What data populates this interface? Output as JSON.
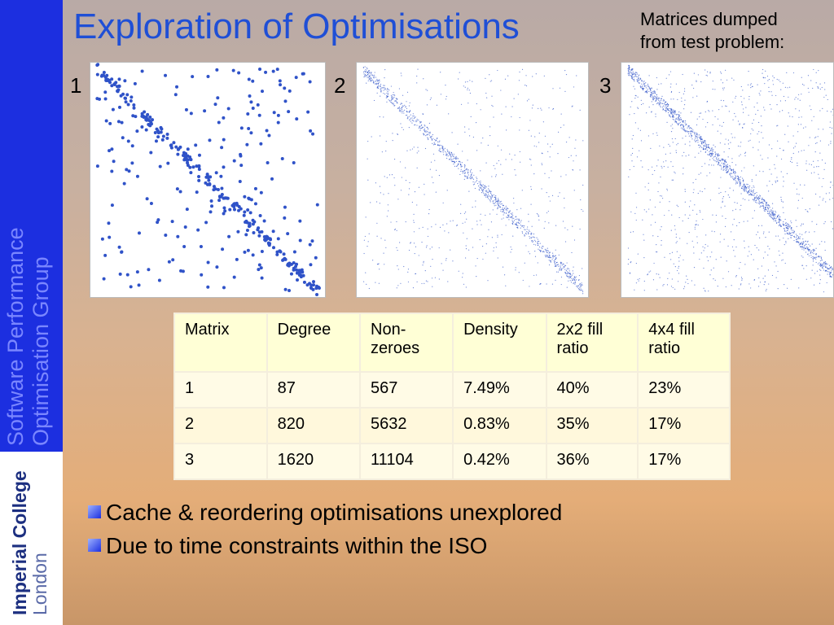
{
  "sidebar": {
    "group": [
      "Software Performance",
      "Optimisation Group"
    ],
    "logo": [
      "Imperial College",
      "London"
    ]
  },
  "title": "Exploration of Optimisations",
  "note": [
    "Matrices dumped",
    "from test problem:"
  ],
  "matrix_labels": [
    "1",
    "2",
    "3"
  ],
  "table": {
    "header": [
      "Matrix",
      "Degree",
      "Non-zeroes",
      "Density",
      "2x2 fill ratio",
      "4x4 fill ratio"
    ],
    "rows": [
      [
        "1",
        "87",
        "567",
        "7.49%",
        "40%",
        "23%"
      ],
      [
        "2",
        "820",
        "5632",
        "0.83%",
        "35%",
        "17%"
      ],
      [
        "3",
        "1620",
        "11104",
        "0.42%",
        "36%",
        "17%"
      ]
    ]
  },
  "bullets": [
    "Cache & reordering optimisations unexplored",
    "Due to time constraints within the ISO"
  ]
}
